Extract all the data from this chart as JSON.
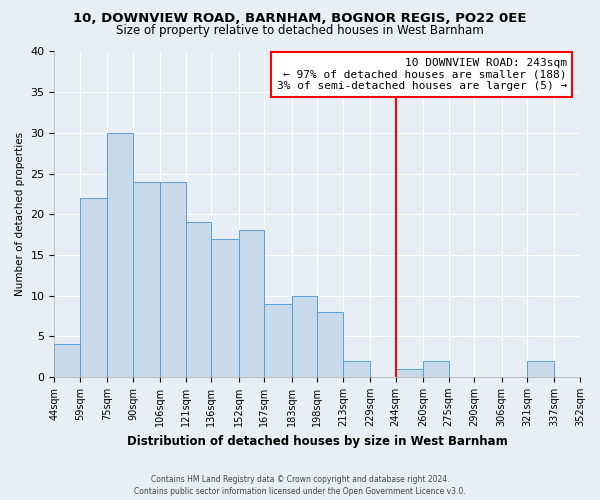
{
  "title1": "10, DOWNVIEW ROAD, BARNHAM, BOGNOR REGIS, PO22 0EE",
  "title2": "Size of property relative to detached houses in West Barnham",
  "xlabel": "Distribution of detached houses by size in West Barnham",
  "ylabel": "Number of detached properties",
  "bin_edges": [
    44,
    59,
    75,
    90,
    106,
    121,
    136,
    152,
    167,
    183,
    198,
    213,
    229,
    244,
    260,
    275,
    290,
    306,
    321,
    337,
    352
  ],
  "bin_counts": [
    4,
    22,
    30,
    24,
    24,
    19,
    17,
    18,
    9,
    10,
    8,
    2,
    0,
    1,
    2,
    0,
    0,
    0,
    2,
    0
  ],
  "bar_color": "#c8d9ea",
  "bar_edge_color": "#5a9fd4",
  "property_line_x": 244,
  "property_line_color": "red",
  "annotation_line1": "10 DOWNVIEW ROAD: 243sqm",
  "annotation_line2": "← 97% of detached houses are smaller (188)",
  "annotation_line3": "3% of semi-detached houses are larger (5) →",
  "ylim": [
    0,
    40
  ],
  "yticks": [
    0,
    5,
    10,
    15,
    20,
    25,
    30,
    35,
    40
  ],
  "tick_labels": [
    "44sqm",
    "59sqm",
    "75sqm",
    "90sqm",
    "106sqm",
    "121sqm",
    "136sqm",
    "152sqm",
    "167sqm",
    "183sqm",
    "198sqm",
    "213sqm",
    "229sqm",
    "244sqm",
    "260sqm",
    "275sqm",
    "290sqm",
    "306sqm",
    "321sqm",
    "337sqm",
    "352sqm"
  ],
  "footer_line1": "Contains HM Land Registry data © Crown copyright and database right 2024.",
  "footer_line2": "Contains public sector information licensed under the Open Government Licence v3.0.",
  "bg_color": "#e8eef5",
  "plot_bg_color": "#e8eef5",
  "grid_color": "#ffffff",
  "title1_fontsize": 9.5,
  "title2_fontsize": 8.5,
  "xlabel_fontsize": 8.5,
  "ylabel_fontsize": 7.5,
  "tick_fontsize": 7.0,
  "annotation_fontsize": 8.0,
  "footer_fontsize": 5.5
}
